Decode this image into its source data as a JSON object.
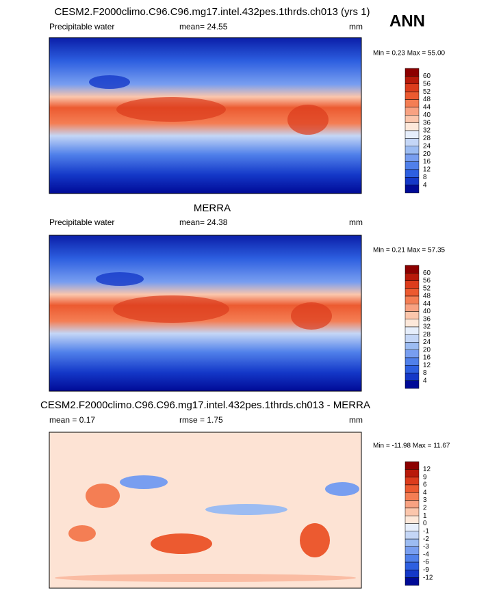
{
  "header": {
    "season": "ANN"
  },
  "panels": [
    {
      "title": "CESM2.F2000climo.C96.C96.mg17.intel.432pes.1thrds.ch013 (yrs 1)",
      "variable": "Precipitable water",
      "stat": "mean= 24.55",
      "stat2": null,
      "units": "mm",
      "range": "Min =  0.23 Max =  55.00",
      "colorbar": {
        "labels": [
          "60",
          "56",
          "52",
          "48",
          "44",
          "40",
          "36",
          "32",
          "28",
          "24",
          "20",
          "16",
          "12",
          "8",
          "4"
        ],
        "colors": [
          "#8c0000",
          "#b81a0a",
          "#dc3c1c",
          "#ec5a30",
          "#f47e54",
          "#f8a282",
          "#fbc6ac",
          "#fde8da",
          "#e6eefb",
          "#c4d6f6",
          "#9cbcf2",
          "#789ef0",
          "#5080ea",
          "#2d5fe0",
          "#1438c8",
          "#000a96"
        ]
      }
    },
    {
      "title": "MERRA",
      "variable": "Precipitable water",
      "stat": "mean= 24.38",
      "stat2": null,
      "units": "mm",
      "range": "Min =  0.21 Max =  57.35",
      "colorbar": {
        "labels": [
          "60",
          "56",
          "52",
          "48",
          "44",
          "40",
          "36",
          "32",
          "28",
          "24",
          "20",
          "16",
          "12",
          "8",
          "4"
        ],
        "colors": [
          "#8c0000",
          "#b81a0a",
          "#dc3c1c",
          "#ec5a30",
          "#f47e54",
          "#f8a282",
          "#fbc6ac",
          "#fde8da",
          "#e6eefb",
          "#c4d6f6",
          "#9cbcf2",
          "#789ef0",
          "#5080ea",
          "#2d5fe0",
          "#1438c8",
          "#000a96"
        ]
      }
    },
    {
      "title": "CESM2.F2000climo.C96.C96.mg17.intel.432pes.1thrds.ch013 - MERRA",
      "variable": "mean =   0.17",
      "stat": "rmse =   1.75",
      "stat2": null,
      "units": "mm",
      "range": "Min = -11.98 Max =  11.67",
      "colorbar": {
        "labels": [
          "12",
          "9",
          "6",
          "4",
          "3",
          "2",
          "1",
          "0",
          "-1",
          "-2",
          "-3",
          "-4",
          "-6",
          "-9",
          "-12"
        ],
        "colors": [
          "#8c0000",
          "#b81a0a",
          "#dc3c1c",
          "#ec5a30",
          "#f47e54",
          "#f8a282",
          "#fbc6ac",
          "#fde8da",
          "#e6eefb",
          "#c4d6f6",
          "#9cbcf2",
          "#789ef0",
          "#5080ea",
          "#2d5fe0",
          "#1438c8",
          "#000a96"
        ]
      }
    }
  ]
}
